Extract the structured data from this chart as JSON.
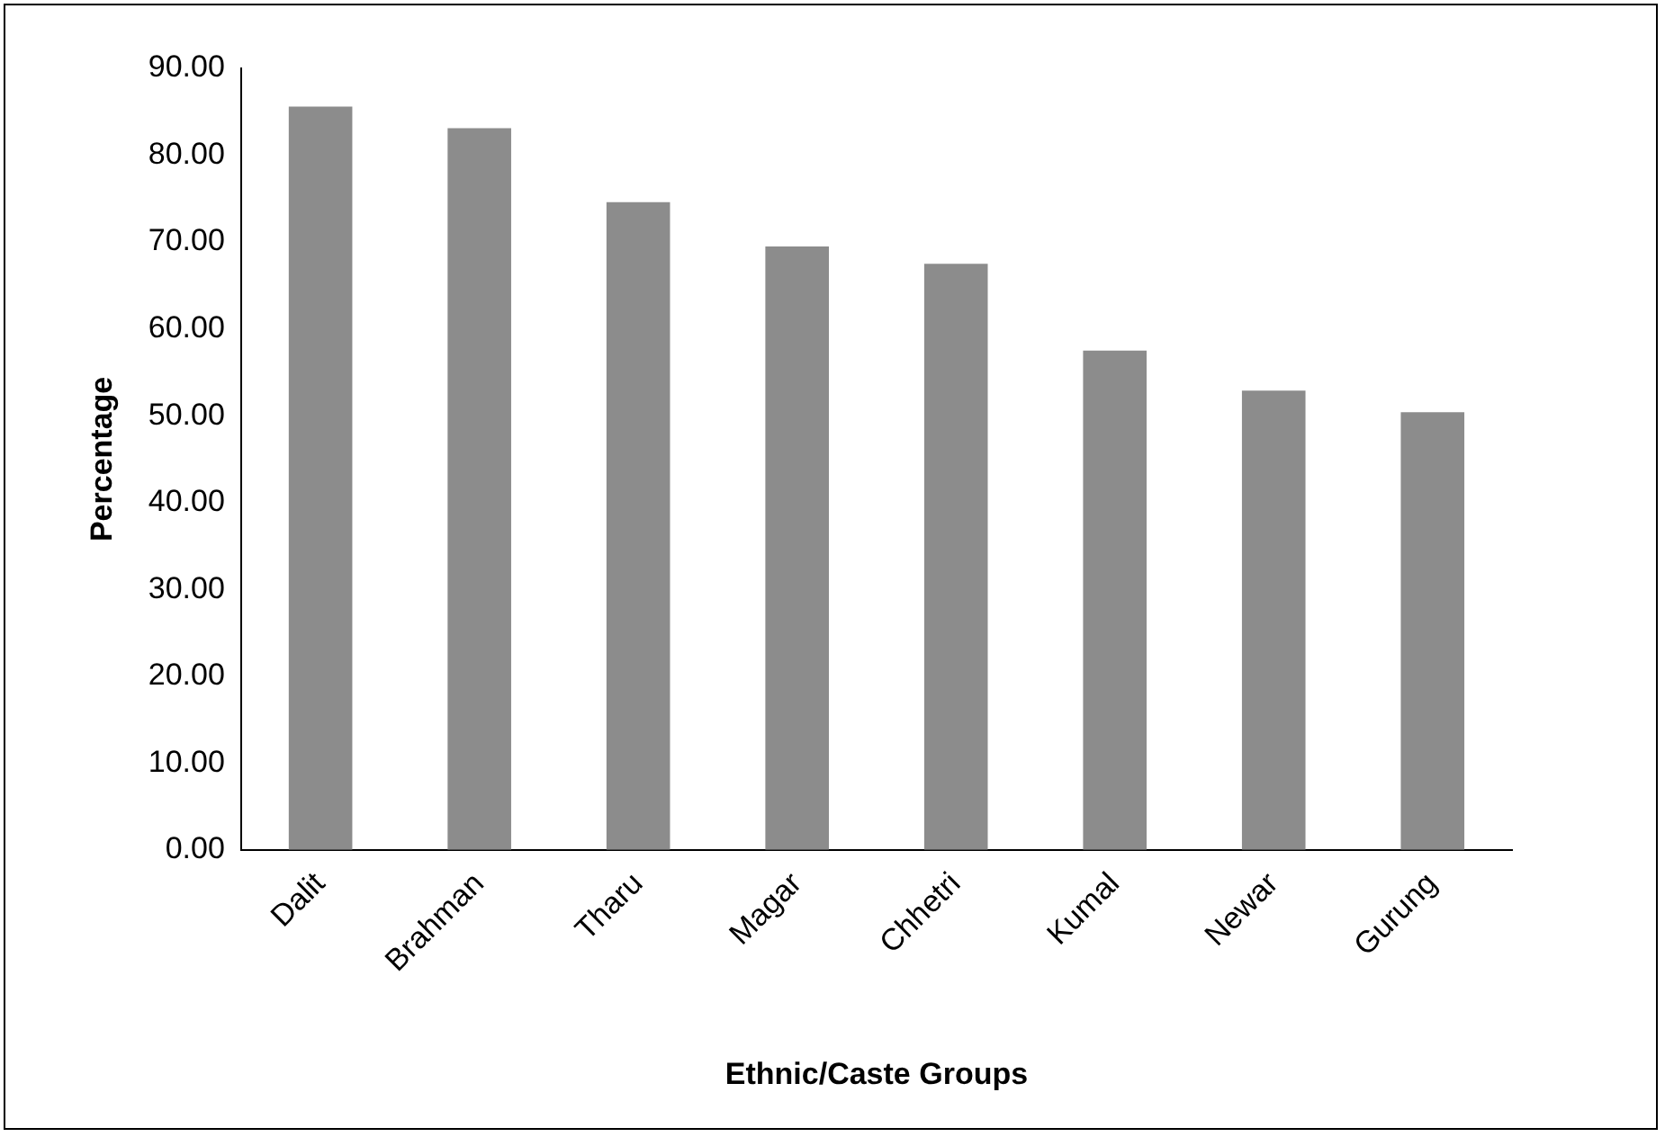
{
  "chart_data": {
    "type": "bar",
    "xlabel": "Ethnic/Caste Groups",
    "ylabel": "Percentage",
    "categories": [
      "Dalit",
      "Brahman",
      "Tharu",
      "Magar",
      "Chhetri",
      "Kumal",
      "Newar",
      "Gurung"
    ],
    "values": [
      85.6,
      83.1,
      74.6,
      69.5,
      67.5,
      57.5,
      52.9,
      50.4
    ],
    "color": "#8c8c8c",
    "ylim": [
      0,
      90
    ],
    "yticks": [
      {
        "value": 0,
        "label": "0.00"
      },
      {
        "value": 10,
        "label": "10.00"
      },
      {
        "value": 20,
        "label": "20.00"
      },
      {
        "value": 30,
        "label": "30.00"
      },
      {
        "value": 40,
        "label": "40.00"
      },
      {
        "value": 50,
        "label": "50.00"
      },
      {
        "value": 60,
        "label": "60.00"
      },
      {
        "value": 70,
        "label": "70.00"
      },
      {
        "value": 80,
        "label": "80.00"
      },
      {
        "value": 90,
        "label": "90.00"
      }
    ],
    "grid": false,
    "legend": false
  }
}
